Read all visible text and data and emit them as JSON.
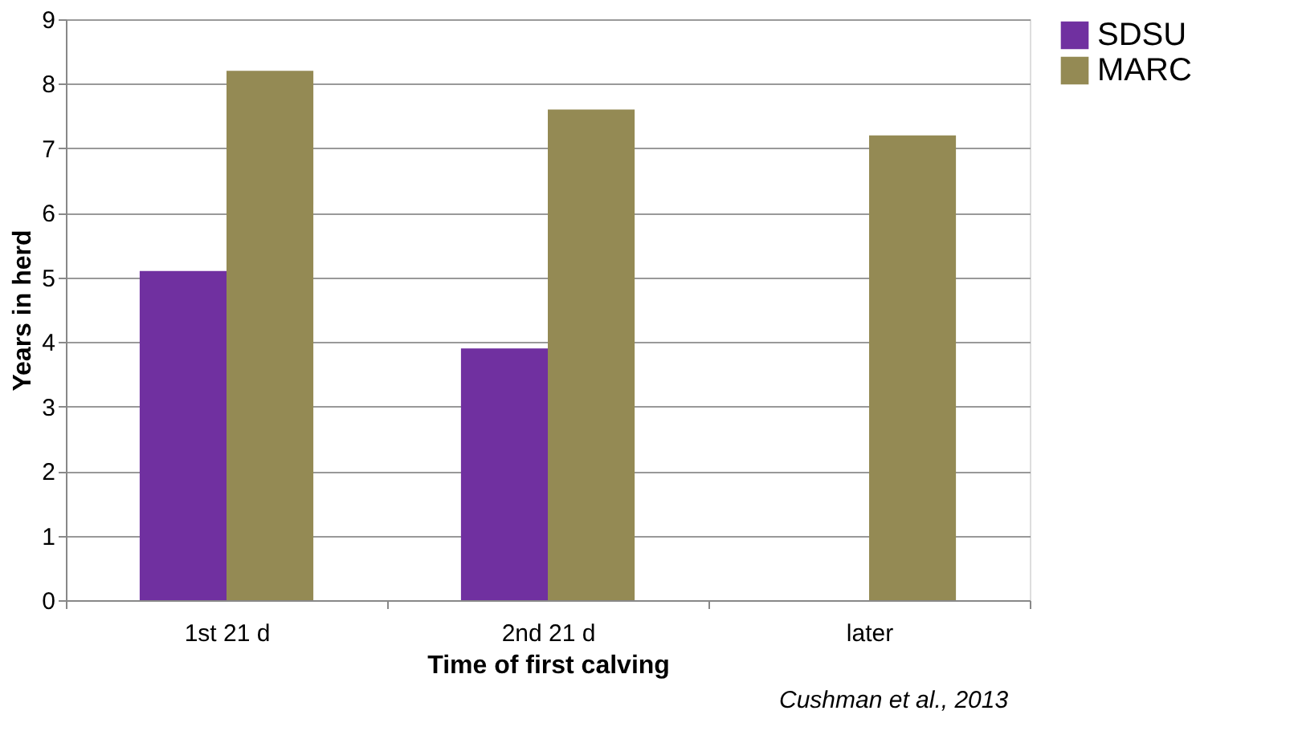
{
  "chart_data": {
    "type": "bar",
    "xlabel": "Time of first calving",
    "ylabel": "Years in herd",
    "categories": [
      "1st 21 d",
      "2nd 21 d",
      "later"
    ],
    "series": [
      {
        "name": "SDSU",
        "color": "#7030a0",
        "values": [
          5.1,
          3.9,
          null
        ]
      },
      {
        "name": "MARC",
        "color": "#948a54",
        "values": [
          8.2,
          7.6,
          7.2
        ]
      }
    ],
    "ylim": [
      0,
      9
    ],
    "yticks": [
      0,
      1,
      2,
      3,
      4,
      5,
      6,
      7,
      8,
      9
    ],
    "grid": "y",
    "legend": "right",
    "annotations": [
      "Cushman et al., 2013"
    ]
  }
}
